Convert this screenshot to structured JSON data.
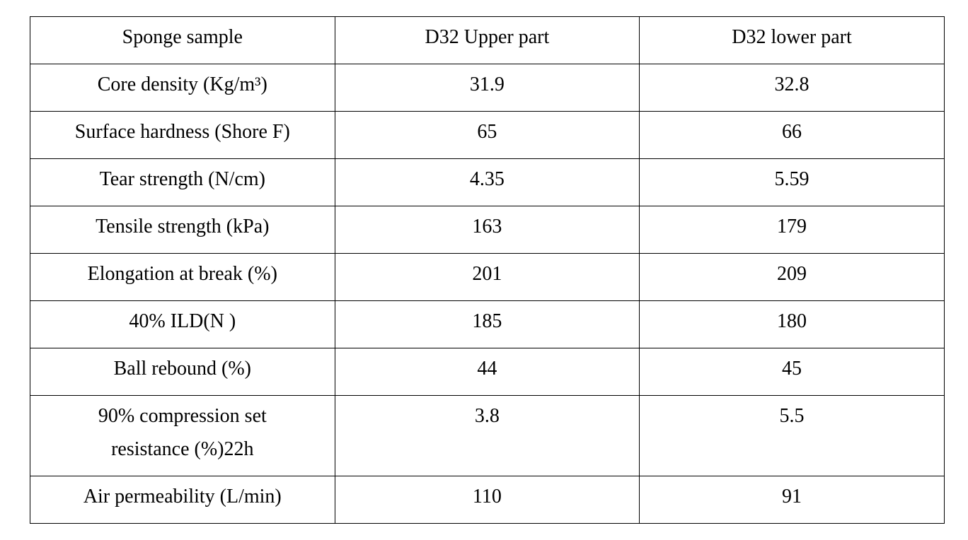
{
  "table": {
    "header": [
      "Sponge sample",
      "D32 Upper part",
      "D32 lower part"
    ],
    "rows": [
      [
        "Core density (Kg/m³)",
        "31.9",
        "32.8"
      ],
      [
        "Surface hardness (Shore F)",
        "65",
        "66"
      ],
      [
        "Tear strength (N/cm)",
        "4.35",
        "5.59"
      ],
      [
        "Tensile strength (kPa)",
        "163",
        "179"
      ],
      [
        "Elongation at break (%)",
        "201",
        "209"
      ],
      [
        "40% ILD(N )",
        "185",
        "180"
      ],
      [
        "Ball rebound (%)",
        "44",
        "45"
      ],
      [
        "90% compression set\nresistance (%)22h",
        "3.8",
        "5.5"
      ],
      [
        "Air permeability (L/min)",
        "110",
        "91"
      ]
    ]
  }
}
